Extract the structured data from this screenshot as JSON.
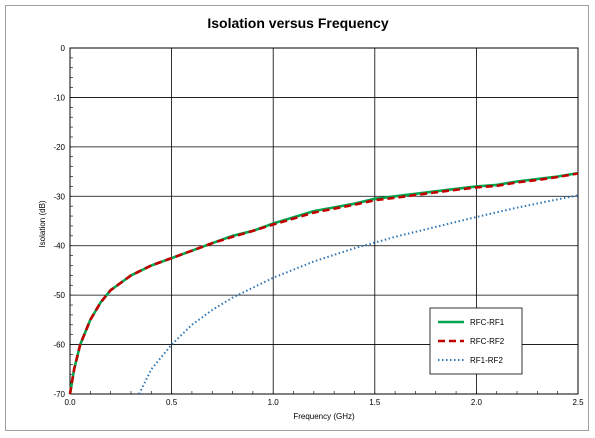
{
  "chart_data": {
    "type": "line",
    "title": "Isolation versus Frequency",
    "xlabel": "Frequency (GHz)",
    "ylabel": "Isolation (dB)",
    "xlim": [
      0,
      2.5
    ],
    "ylim": [
      -70,
      0
    ],
    "xticks": [
      "0.0",
      "0.5",
      "1.0",
      "1.5",
      "2.0",
      "2.5"
    ],
    "yticks": [
      "0",
      "-10",
      "-20",
      "-30",
      "-40",
      "-50",
      "-60",
      "-70"
    ],
    "xtick_values": [
      0,
      0.5,
      1.0,
      1.5,
      2.0,
      2.5
    ],
    "ytick_values": [
      0,
      -10,
      -20,
      -30,
      -40,
      -50,
      -60,
      -70
    ],
    "grid": true,
    "legend": "bottom-right",
    "series": [
      {
        "name": "RFC-RF1",
        "color": "#00a650",
        "style": "solid",
        "x": [
          0.0,
          0.02,
          0.05,
          0.1,
          0.15,
          0.2,
          0.3,
          0.4,
          0.5,
          0.6,
          0.7,
          0.8,
          0.9,
          1.0,
          1.2,
          1.4,
          1.5,
          1.6,
          1.8,
          2.0,
          2.1,
          2.2,
          2.3,
          2.4,
          2.5
        ],
        "y": [
          -70,
          -65,
          -60,
          -55,
          -51.5,
          -49,
          -46,
          -44,
          -42.5,
          -41,
          -39.5,
          -38,
          -37,
          -35.5,
          -33,
          -31.5,
          -30.5,
          -30,
          -29,
          -28,
          -27.7,
          -27,
          -26.5,
          -26,
          -25.3
        ]
      },
      {
        "name": "RFC-RF2",
        "color": "#c00000",
        "style": "dashed",
        "x": [
          0.0,
          0.02,
          0.05,
          0.1,
          0.15,
          0.2,
          0.3,
          0.4,
          0.5,
          0.6,
          0.7,
          0.8,
          0.9,
          1.0,
          1.2,
          1.4,
          1.5,
          1.6,
          1.8,
          2.0,
          2.1,
          2.2,
          2.3,
          2.4,
          2.5
        ],
        "y": [
          -70,
          -65,
          -60,
          -55,
          -51.5,
          -49,
          -46,
          -44,
          -42.5,
          -41,
          -39.5,
          -38.2,
          -37,
          -35.7,
          -33.3,
          -31.7,
          -30.8,
          -30.3,
          -29.2,
          -28.2,
          -27.9,
          -27.2,
          -26.7,
          -26.1,
          -25.4
        ]
      },
      {
        "name": "RF1-RF2",
        "color": "#2e75b6",
        "style": "dotted",
        "x": [
          0.34,
          0.4,
          0.5,
          0.6,
          0.7,
          0.8,
          1.0,
          1.2,
          1.4,
          1.5,
          1.6,
          1.8,
          2.0,
          2.2,
          2.4,
          2.5
        ],
        "y": [
          -70,
          -65,
          -60,
          -56,
          -53,
          -50.5,
          -46.5,
          -43.2,
          -40.5,
          -39.4,
          -38.2,
          -36.2,
          -34.2,
          -32.3,
          -30.6,
          -29.8
        ]
      }
    ]
  }
}
